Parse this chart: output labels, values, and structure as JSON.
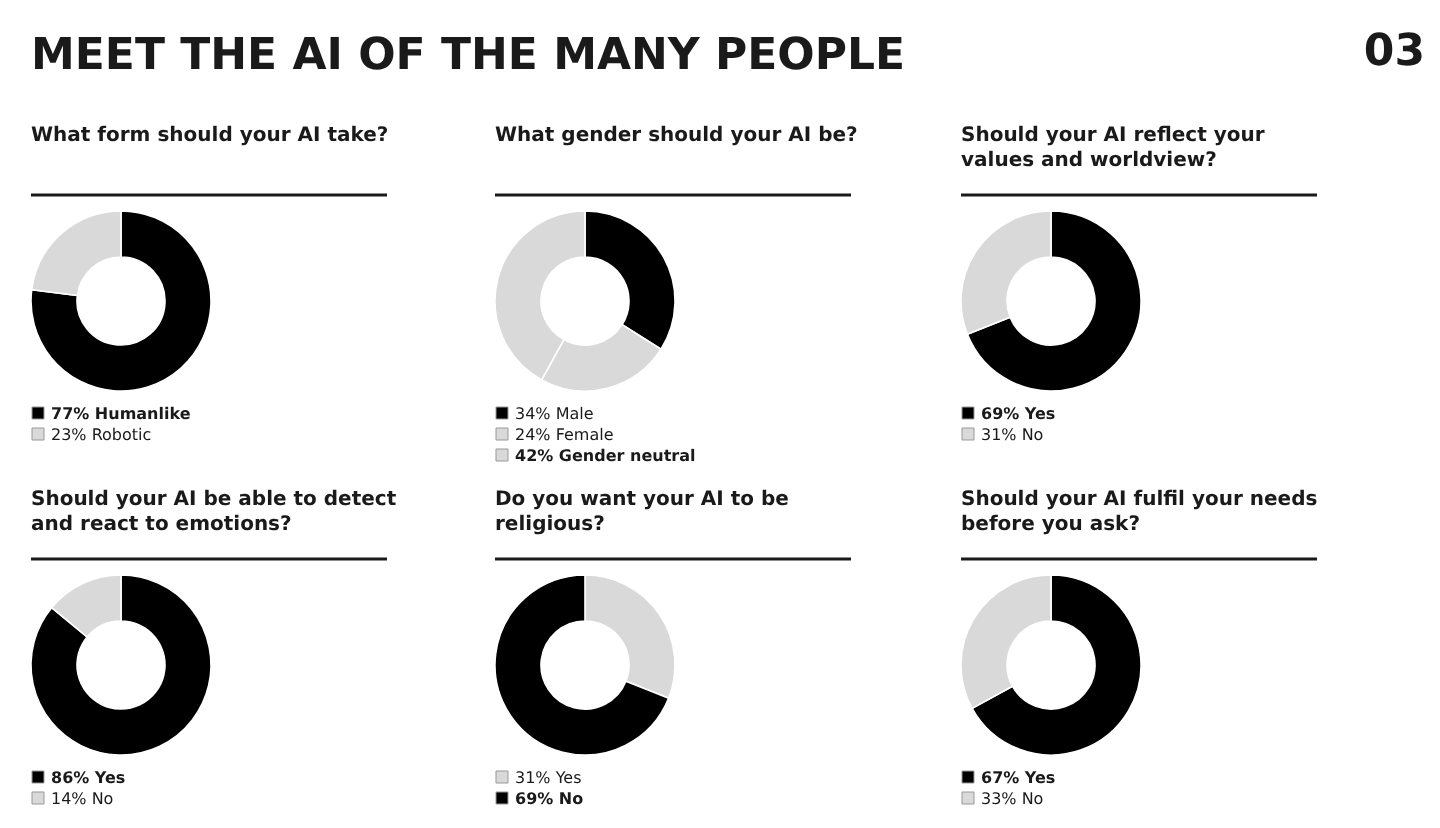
{
  "chart_data": [
    {
      "type": "other",
      "title": "MEET THE AI OF THE MANY PEOPLE",
      "annotations": [
        "03"
      ]
    },
    {
      "type": "donut",
      "title": "What form should your AI take?",
      "categories": [
        "Humanlike",
        "Robotic"
      ],
      "values": [
        77,
        23
      ],
      "value_labels": [
        "77%",
        "23%"
      ],
      "colors": [
        "#000000",
        "#d9d9d9"
      ],
      "legend": "bottom"
    },
    {
      "type": "donut",
      "title": "What gender should your AI be?",
      "categories": [
        "Male",
        "Female",
        "Gender neutral"
      ],
      "values": [
        34,
        24,
        42
      ],
      "value_labels": [
        "34%",
        "24%",
        "42%"
      ],
      "colors": [
        "#000000",
        "#d9d9d9",
        "#d9d9d9"
      ],
      "legend": "bottom"
    },
    {
      "type": "donut",
      "title": "Should your AI reflect your values and worldview?",
      "categories": [
        "Yes",
        "No"
      ],
      "values": [
        69,
        31
      ],
      "value_labels": [
        "69%",
        "31%"
      ],
      "colors": [
        "#000000",
        "#d9d9d9"
      ],
      "legend": "bottom"
    },
    {
      "type": "donut",
      "title": "Should your AI be able to detect and react to emotions?",
      "categories": [
        "Yes",
        "No"
      ],
      "values": [
        86,
        14
      ],
      "value_labels": [
        "86%",
        "14%"
      ],
      "colors": [
        "#000000",
        "#d9d9d9"
      ],
      "legend": "bottom"
    },
    {
      "type": "donut",
      "title": "Do you want your AI to be religious?",
      "categories": [
        "Yes",
        "No"
      ],
      "values": [
        31,
        69
      ],
      "value_labels": [
        "31%",
        "69%"
      ],
      "colors": [
        "#d9d9d9",
        "#000000"
      ],
      "legend": "bottom"
    },
    {
      "type": "donut",
      "title": "Should your AI fulfil your needs before you ask?",
      "categories": [
        "Yes",
        "No"
      ],
      "values": [
        67,
        33
      ],
      "value_labels": [
        "67%",
        "33%"
      ],
      "colors": [
        "#000000",
        "#d9d9d9"
      ],
      "legend": "bottom"
    }
  ]
}
